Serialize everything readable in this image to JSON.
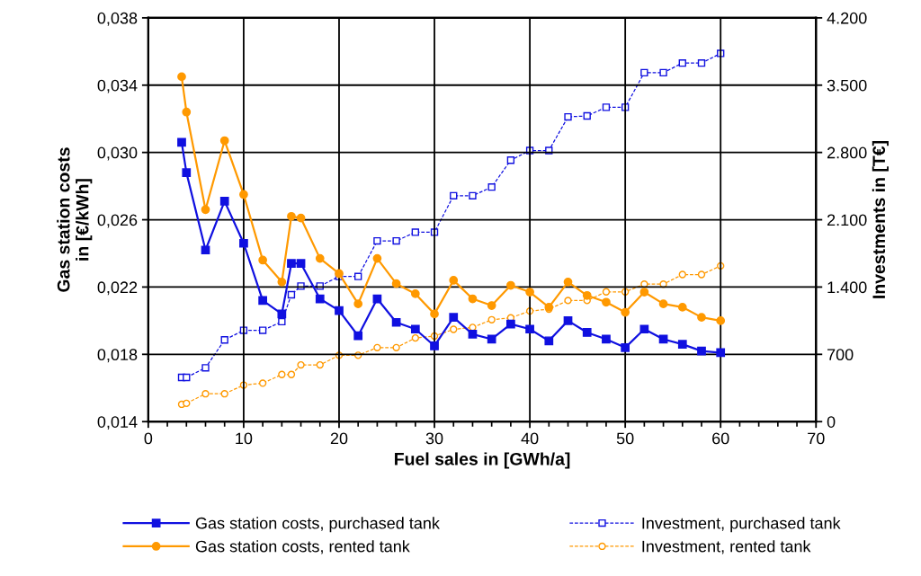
{
  "chart_data": {
    "type": "line",
    "xlabel": "Fuel sales in [GWh/a]",
    "ylabel": "Gas station costs\nin [€/kWh]",
    "y2label": "Investments in [T€]",
    "x": [
      3.5,
      4,
      6,
      8,
      10,
      12,
      14,
      15,
      16,
      18,
      20,
      22,
      24,
      26,
      28,
      30,
      32,
      34,
      36,
      38,
      40,
      42,
      44,
      46,
      48,
      50,
      52,
      54,
      56,
      58,
      60
    ],
    "series": [
      {
        "name": "Gas station costs, purchased tank",
        "color": "#1010e0",
        "marker": "square",
        "line_style": "solid",
        "values": [
          0.0306,
          0.0288,
          0.0242,
          0.0271,
          0.0246,
          0.0212,
          0.0204,
          0.0234,
          0.0234,
          0.0213,
          0.0206,
          0.0191,
          0.0213,
          0.0199,
          0.0195,
          0.0185,
          0.0202,
          0.0192,
          0.0189,
          0.0198,
          0.0195,
          0.0188,
          0.02,
          0.0193,
          0.0189,
          0.0184,
          0.0195,
          0.0189,
          0.0186,
          0.0182,
          0.0181
        ]
      },
      {
        "name": "Gas station costs, rented tank",
        "color": "#ff9900",
        "marker": "circle",
        "line_style": "solid",
        "values": [
          0.0345,
          0.0324,
          0.0266,
          0.0307,
          0.0275,
          0.0236,
          0.0223,
          0.0262,
          0.0261,
          0.0237,
          0.0228,
          0.021,
          0.0237,
          0.0222,
          0.0216,
          0.0204,
          0.0224,
          0.0213,
          0.0209,
          0.0221,
          0.0217,
          0.0208,
          0.0223,
          0.0215,
          0.0211,
          0.0205,
          0.0217,
          0.021,
          0.0208,
          0.0202,
          0.02
        ]
      },
      {
        "name": "Investment, purchased tank",
        "color": "#1010e0",
        "marker": "square",
        "line_style": "dashed",
        "axis": "y2",
        "values": [
          460,
          460,
          560,
          850,
          950,
          950,
          1040,
          1320,
          1410,
          1410,
          1510,
          1510,
          1880,
          1880,
          1970,
          1970,
          2350,
          2350,
          2440,
          2720,
          2820,
          2820,
          3170,
          3180,
          3270,
          3270,
          3630,
          3630,
          3730,
          3730,
          3830
        ]
      },
      {
        "name": "Investment, rented tank",
        "color": "#ff9900",
        "marker": "circle",
        "line_style": "dashed",
        "axis": "y2",
        "values": [
          180,
          190,
          290,
          290,
          380,
          400,
          490,
          490,
          590,
          590,
          690,
          690,
          770,
          770,
          870,
          890,
          960,
          980,
          1060,
          1080,
          1150,
          1170,
          1260,
          1260,
          1350,
          1350,
          1430,
          1430,
          1530,
          1530,
          1620
        ]
      }
    ],
    "xlim": [
      0,
      70
    ],
    "xticks": [
      0,
      {
        "value": 2,
        "label": null
      },
      {
        "value": 4,
        "label": null
      },
      {
        "value": 6,
        "label": null
      },
      {
        "value": 8,
        "label": null
      },
      10,
      {
        "value": 12,
        "label": null
      },
      {
        "value": 14,
        "label": null
      },
      {
        "value": 16,
        "label": null
      },
      {
        "value": 18,
        "label": null
      },
      20,
      {
        "value": 22,
        "label": null
      },
      {
        "value": 24,
        "label": null
      },
      {
        "value": 26,
        "label": null
      },
      {
        "value": 28,
        "label": null
      },
      30,
      {
        "value": 32,
        "label": null
      },
      {
        "value": 34,
        "label": null
      },
      {
        "value": 36,
        "label": null
      },
      {
        "value": 38,
        "label": null
      },
      40,
      {
        "value": 42,
        "label": null
      },
      {
        "value": 44,
        "label": null
      },
      {
        "value": 46,
        "label": null
      },
      {
        "value": 48,
        "label": null
      },
      50,
      {
        "value": 52,
        "label": null
      },
      {
        "value": 54,
        "label": null
      },
      {
        "value": 56,
        "label": null
      },
      {
        "value": 58,
        "label": null
      },
      60,
      {
        "value": 62,
        "label": null
      },
      {
        "value": 64,
        "label": null
      },
      {
        "value": 66,
        "label": null
      },
      {
        "value": 68,
        "label": null
      },
      70
    ],
    "ylim": [
      0.014,
      0.038
    ],
    "yticks": [
      {
        "value": 0.014,
        "label": "0,014"
      },
      {
        "value": 0.018,
        "label": "0,018"
      },
      {
        "value": 0.022,
        "label": "0,022"
      },
      {
        "value": 0.026,
        "label": "0,026"
      },
      {
        "value": 0.03,
        "label": "0,030"
      },
      {
        "value": 0.034,
        "label": "0,034"
      },
      {
        "value": 0.038,
        "label": "0,038"
      }
    ],
    "y2lim": [
      0,
      4200
    ],
    "y2ticks": [
      0,
      700,
      {
        "value": 1400,
        "label": "1.400"
      },
      {
        "value": 2100,
        "label": "2.100"
      },
      {
        "value": 2800,
        "label": "2.800"
      },
      {
        "value": 3500,
        "label": "3.500"
      },
      {
        "value": 4200,
        "label": "4.200"
      }
    ],
    "grid": true,
    "legend": "bottom"
  }
}
